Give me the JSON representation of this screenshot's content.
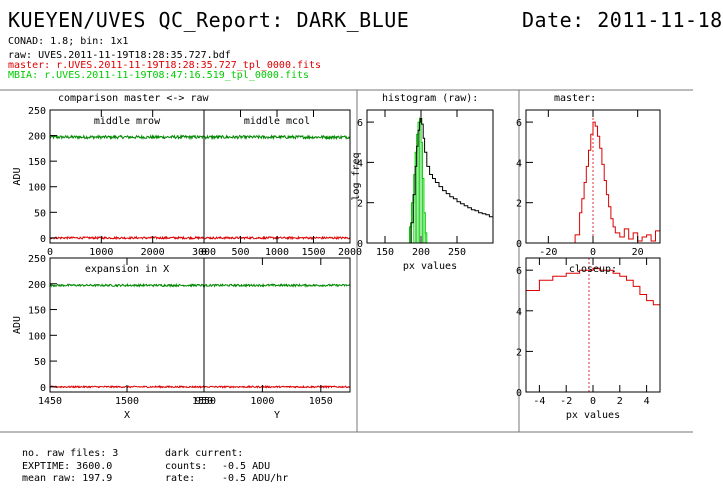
{
  "header": {
    "title": "KUEYEN/UVES QC_Report: DARK_BLUE",
    "date": "Date: 2011-11-18",
    "conad": "CONAD: 1.8; bin: 1x1",
    "raw": "raw: UVES.2011-11-19T18:28:35.727.bdf",
    "master": "master: r.UVES.2011-11-19T18:28:35.727_tpl_0000.fits",
    "mbia": "MBIA: r.UVES.2011-11-19T08:47:16.519_tpl_0000.fits"
  },
  "colors": {
    "raw": "#008800",
    "master": "#dd0000",
    "mbia": "#00cc00",
    "hist_raw": "#000000"
  },
  "panel_title": "comparison master <-> raw",
  "chart_data": [
    {
      "type": "line",
      "label": "middle mrow",
      "ylabel": "ADU",
      "xlim": [
        0,
        3000
      ],
      "ylim": [
        -10,
        250
      ],
      "xticks": [
        0,
        1000,
        2000,
        3000
      ],
      "yticks": [
        0,
        50,
        100,
        150,
        200,
        250
      ],
      "series": [
        {
          "color": "raw",
          "level": 197,
          "noise": 3
        },
        {
          "color": "master",
          "level": 0,
          "noise": 2
        }
      ]
    },
    {
      "type": "line",
      "label": "middle mcol",
      "xlim": [
        0,
        2000
      ],
      "ylim": [
        -10,
        250
      ],
      "xticks": [
        0,
        500,
        1000,
        1500,
        2000
      ],
      "series": [
        {
          "color": "raw",
          "level": 197,
          "noise": 3
        },
        {
          "color": "master",
          "level": 0,
          "noise": 2
        }
      ]
    },
    {
      "type": "line",
      "label": "expansion in X",
      "xlabel": "X",
      "ylabel": "ADU",
      "xlim": [
        1450,
        1550
      ],
      "ylim": [
        -10,
        250
      ],
      "xticks": [
        1450,
        1500,
        1550
      ],
      "yticks": [
        0,
        50,
        100,
        150,
        200,
        250
      ],
      "series": [
        {
          "color": "raw",
          "level": 197,
          "noise": 2
        },
        {
          "color": "master",
          "level": 0,
          "noise": 1.5
        }
      ]
    },
    {
      "type": "line",
      "xlabel": "Y",
      "xlim": [
        950,
        1075
      ],
      "ylim": [
        -10,
        250
      ],
      "xticks": [
        950,
        1000,
        1050
      ],
      "series": [
        {
          "color": "raw",
          "level": 197,
          "noise": 2
        },
        {
          "color": "master",
          "level": 0,
          "noise": 1.5
        }
      ]
    },
    {
      "type": "histogram",
      "title": "histogram (raw):",
      "xlabel": "px values",
      "ylabel": "log freq",
      "xlim": [
        125,
        300
      ],
      "ylim": [
        0,
        6.6
      ],
      "xticks": [
        150,
        200,
        250
      ],
      "yticks": [
        0,
        2,
        4,
        6
      ],
      "series": [
        {
          "color": "mbia",
          "x": [
            180,
            184,
            187,
            190,
            192,
            194,
            196,
            198,
            200,
            202,
            204,
            206,
            208
          ],
          "y": [
            0,
            0.8,
            2.0,
            3.4,
            4.5,
            5.4,
            6.0,
            6.2,
            5.0,
            3.2,
            1.5,
            0.5,
            0
          ]
        },
        {
          "color": "hist_raw",
          "x": [
            183,
            186,
            189,
            192,
            194,
            196,
            198,
            199,
            201,
            203,
            205,
            208,
            212,
            216,
            220,
            225,
            230,
            235,
            240,
            245,
            250,
            255,
            260,
            265,
            270,
            275,
            280,
            285,
            290,
            295,
            300
          ],
          "y": [
            0,
            1.0,
            2.4,
            3.8,
            4.8,
            5.6,
            6.0,
            6.2,
            5.9,
            5.2,
            4.5,
            3.8,
            3.4,
            3.2,
            3.0,
            2.8,
            2.6,
            2.45,
            2.3,
            2.2,
            2.05,
            1.95,
            1.85,
            1.75,
            1.65,
            1.6,
            1.5,
            1.45,
            1.4,
            1.3,
            1.25
          ]
        }
      ]
    },
    {
      "type": "histogram",
      "title": "master:",
      "xlim": [
        -30,
        30
      ],
      "ylim": [
        0,
        6.6
      ],
      "xticks": [
        -20,
        0,
        20
      ],
      "yticks": [
        0,
        2,
        4,
        6
      ],
      "series": [
        {
          "color": "master",
          "x": [
            -30,
            -10,
            -8,
            -6,
            -5,
            -4,
            -3,
            -2,
            -1,
            0,
            1,
            2,
            3,
            4,
            5,
            6,
            7,
            8,
            9,
            10,
            12,
            14,
            16,
            18,
            20,
            22,
            24,
            26,
            28,
            30
          ],
          "y": [
            0,
            0,
            0.4,
            1.5,
            2.2,
            3.0,
            3.8,
            4.6,
            5.4,
            6.0,
            5.8,
            5.3,
            4.7,
            3.9,
            3.1,
            2.4,
            1.8,
            1.2,
            0.8,
            0.5,
            0.3,
            0.7,
            0.2,
            0.5,
            0.1,
            0.3,
            0.4,
            0.1,
            0.6,
            0.2
          ]
        }
      ],
      "marker": 0
    },
    {
      "type": "histogram",
      "label": "closeup:",
      "xlabel": "px values",
      "xlim": [
        -5,
        5
      ],
      "ylim": [
        0,
        6.6
      ],
      "xticks": [
        -4,
        -2,
        0,
        2,
        4
      ],
      "yticks": [
        0,
        2,
        4,
        6
      ],
      "series": [
        {
          "color": "master",
          "x": [
            -5,
            -4.5,
            -4,
            -3.5,
            -3,
            -2.5,
            -2,
            -1.5,
            -1,
            -0.5,
            0,
            0.5,
            1,
            1.5,
            2,
            2.5,
            3,
            3.5,
            4,
            4.5,
            5
          ],
          "y": [
            5.0,
            5.0,
            5.5,
            5.5,
            5.7,
            5.7,
            5.85,
            5.85,
            6.0,
            6.0,
            6.1,
            6.0,
            6.0,
            5.85,
            5.7,
            5.5,
            5.2,
            4.8,
            4.5,
            4.3,
            4.0
          ]
        }
      ],
      "marker": -0.3
    }
  ],
  "footer": {
    "raw_files": "no. raw files: 3",
    "exptime": "EXPTIME: 3600.0",
    "mean_raw": "mean raw: 197.9",
    "dark_title": "dark current:",
    "counts_label": "counts:",
    "counts_value": "-0.5 ADU",
    "rate_label": "rate:",
    "rate_value": "-0.5 ADU/hr"
  }
}
